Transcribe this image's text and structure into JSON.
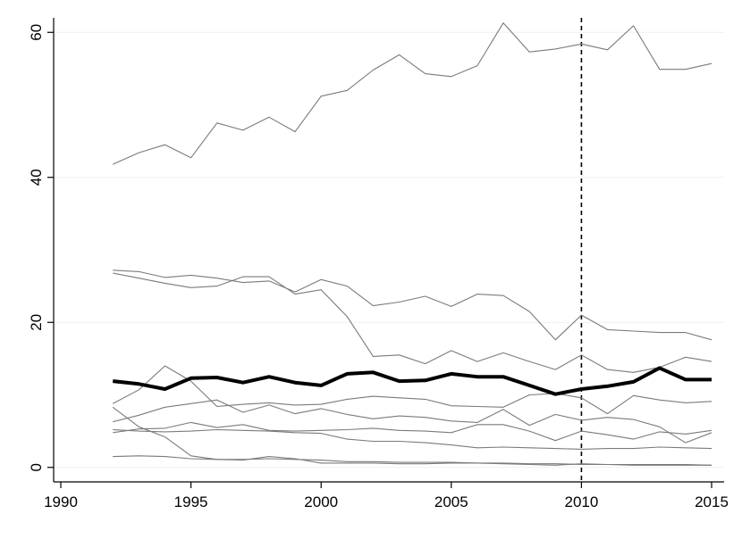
{
  "chart_data": {
    "type": "line",
    "title": "",
    "xlabel": "",
    "ylabel": "",
    "xlim": [
      1990,
      2015
    ],
    "ylim": [
      0,
      60
    ],
    "x_ticks": [
      "1990",
      "1995",
      "2000",
      "2005",
      "2010",
      "2015"
    ],
    "y_ticks": [
      "0",
      "20",
      "40",
      "60"
    ],
    "grid": true,
    "reference_line_x": 2010,
    "x": [
      1992,
      1993,
      1994,
      1995,
      1996,
      1997,
      1998,
      1999,
      2000,
      2001,
      2002,
      2003,
      2004,
      2005,
      2006,
      2007,
      2008,
      2009,
      2010,
      2011,
      2012,
      2013,
      2014,
      2015
    ],
    "series": [
      {
        "style": "thin",
        "values": [
          41.8,
          43.4,
          44.5,
          42.7,
          47.5,
          46.5,
          48.3,
          46.3,
          51.2,
          52.0,
          54.8,
          56.9,
          54.3,
          53.9,
          55.4,
          61.3,
          57.3,
          57.7,
          58.4,
          57.6,
          60.9,
          54.9,
          54.9,
          55.7
        ]
      },
      {
        "style": "thin",
        "values": [
          27.2,
          27.0,
          26.2,
          26.5,
          26.1,
          25.5,
          25.7,
          24.2,
          25.9,
          25.0,
          22.3,
          22.8,
          23.6,
          22.2,
          23.9,
          23.7,
          21.5,
          17.6,
          21.0,
          19.0,
          18.8,
          18.6,
          18.6,
          17.6
        ]
      },
      {
        "style": "thin",
        "values": [
          26.8,
          26.1,
          25.4,
          24.8,
          25.0,
          26.3,
          26.3,
          23.9,
          24.5,
          20.8,
          15.3,
          15.5,
          14.3,
          16.1,
          14.6,
          15.8,
          14.6,
          13.5,
          15.5,
          13.5,
          13.1,
          13.8,
          15.2,
          14.6
        ]
      },
      {
        "style": "thick",
        "values": [
          11.9,
          11.5,
          10.8,
          12.3,
          12.4,
          11.7,
          12.5,
          11.7,
          11.3,
          12.9,
          13.1,
          11.9,
          12.0,
          12.9,
          12.5,
          12.5,
          11.3,
          10.1,
          10.8,
          11.2,
          11.8,
          13.7,
          12.1,
          12.1
        ]
      },
      {
        "style": "thin",
        "values": [
          8.8,
          10.7,
          14.0,
          11.9,
          8.4,
          8.7,
          8.9,
          8.6,
          8.7,
          9.4,
          9.8,
          9.6,
          9.4,
          8.5,
          8.4,
          8.3,
          10.0,
          10.2,
          9.6,
          7.4,
          9.9,
          9.3,
          8.9,
          9.1
        ]
      },
      {
        "style": "thin",
        "values": [
          6.3,
          7.2,
          8.3,
          8.8,
          9.3,
          7.6,
          8.6,
          7.4,
          8.1,
          7.3,
          6.7,
          7.1,
          6.9,
          6.4,
          6.2,
          8.0,
          5.8,
          7.3,
          6.5,
          6.9,
          6.6,
          5.6,
          3.4,
          4.8
        ]
      },
      {
        "style": "thin",
        "values": [
          4.8,
          5.3,
          5.4,
          6.2,
          5.5,
          5.9,
          5.1,
          5.0,
          5.1,
          5.2,
          5.4,
          5.1,
          5.0,
          4.8,
          5.9,
          5.9,
          5.0,
          3.7,
          5.0,
          4.5,
          3.9,
          4.9,
          4.6,
          5.1
        ]
      },
      {
        "style": "thin",
        "values": [
          5.2,
          5.0,
          4.9,
          5.0,
          5.2,
          5.1,
          5.0,
          4.8,
          4.7,
          3.9,
          3.6,
          3.6,
          3.4,
          3.1,
          2.7,
          2.8,
          2.7,
          2.6,
          2.5,
          2.6,
          2.6,
          2.8,
          2.7,
          2.6
        ]
      },
      {
        "style": "thin",
        "values": [
          8.3,
          5.6,
          4.2,
          1.6,
          1.1,
          1.1,
          1.2,
          1.1,
          1.0,
          0.8,
          0.8,
          0.7,
          0.7,
          0.7,
          0.6,
          0.6,
          0.5,
          0.5,
          0.4,
          0.4,
          0.4,
          0.4,
          0.4,
          0.3
        ]
      },
      {
        "style": "thin",
        "values": [
          1.5,
          1.6,
          1.5,
          1.2,
          1.1,
          1.0,
          1.5,
          1.2,
          0.6,
          0.6,
          0.6,
          0.5,
          0.5,
          0.6,
          0.6,
          0.5,
          0.4,
          0.3,
          0.5,
          0.4,
          0.3,
          0.3,
          0.3,
          0.3
        ]
      }
    ]
  }
}
